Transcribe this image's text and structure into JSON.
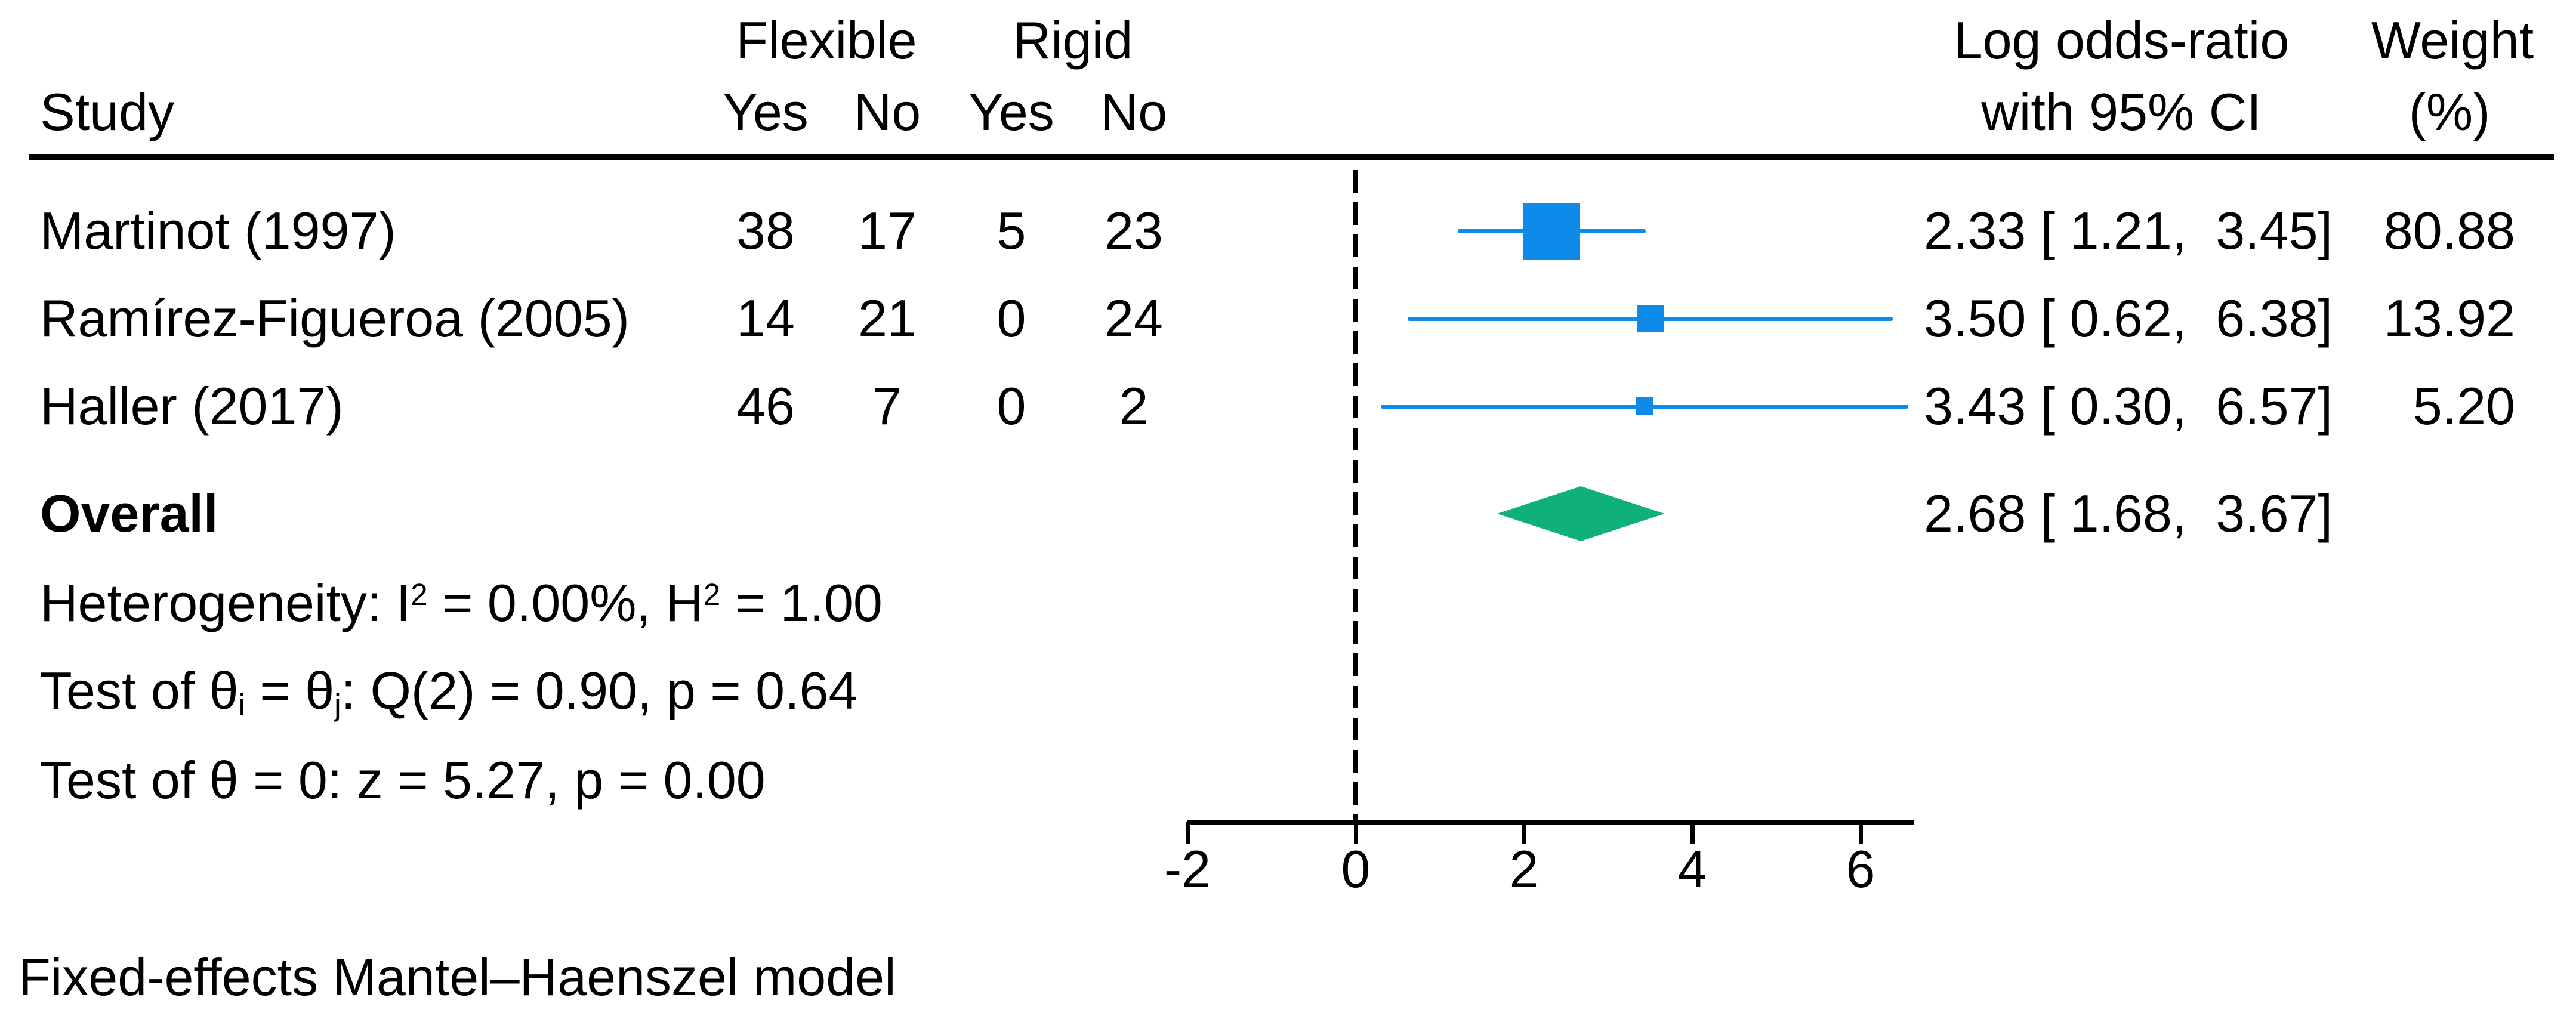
{
  "colors": {
    "marker_blue": "#0e8aea",
    "diamond_green": "#10b07c",
    "text_black": "#000000"
  },
  "header": {
    "study_label": "Study",
    "group1_label": "Flexible",
    "group2_label": "Rigid",
    "count_col_labels": [
      "Yes",
      "No",
      "Yes",
      "No"
    ],
    "effect_header_line1": "Log odds-ratio",
    "effect_header_line2": "with 95% CI",
    "weight_header_line1": "Weight",
    "weight_header_line2": "(%)"
  },
  "stats": {
    "overall_label": "Overall",
    "heterogeneity_p1": "Heterogeneity: I",
    "heterogeneity_s1": "2",
    "heterogeneity_p2": " = 0.00%, H",
    "heterogeneity_s2": "2",
    "heterogeneity_p3": " = 1.00",
    "test1_p1": "Test of θ",
    "test1_sub1": "i",
    "test1_p2": " = θ",
    "test1_sub2": "j",
    "test1_p3": ": Q(2) = 0.90, p = 0.64",
    "test2": "Test of θ = 0: z = 5.27, p = 0.00"
  },
  "footer": {
    "note": "Fixed-effects Mantel–Haenszel model"
  },
  "chart_data": {
    "type": "forest",
    "title": "",
    "effect_measure": "Log odds-ratio",
    "x_axis": {
      "ticks": [
        -2,
        0,
        2,
        4,
        6
      ],
      "tick_labels": [
        "-2",
        "0",
        "2",
        "4",
        "6"
      ],
      "reference_line": 0,
      "range_shown": [
        -2,
        6.6
      ]
    },
    "model_note": "Fixed-effects Mantel–Haenszel model",
    "heterogeneity": {
      "I2_pct": 0.0,
      "H2": 1.0,
      "Q_df": 2,
      "Q": 0.9,
      "p_Q": 0.64,
      "z": 5.27,
      "p_z": 0.0
    },
    "studies": [
      {
        "label": "Martinot (1997)",
        "flexible_yes": "38",
        "flexible_no": "17",
        "rigid_yes": "5",
        "rigid_no": "23",
        "estimate": 2.33,
        "ci_low": 1.21,
        "ci_high": 3.45,
        "ci_text": "2.33 [ 1.21,  3.45]",
        "weight_pct": "80.88",
        "marker_px": 95
      },
      {
        "label": "Ramírez-Figueroa (2005)",
        "flexible_yes": "14",
        "flexible_no": "21",
        "rigid_yes": "0",
        "rigid_no": "24",
        "estimate": 3.5,
        "ci_low": 0.62,
        "ci_high": 6.38,
        "ci_text": "3.50 [ 0.62,  6.38]",
        "weight_pct": "13.92",
        "marker_px": 46
      },
      {
        "label": "Haller (2017)",
        "flexible_yes": "46",
        "flexible_no": "7",
        "rigid_yes": "0",
        "rigid_no": "2",
        "estimate": 3.43,
        "ci_low": 0.3,
        "ci_high": 6.57,
        "ci_text": "3.43 [ 0.30,  6.57]",
        "weight_pct": "5.20",
        "marker_px": 30
      }
    ],
    "overall": {
      "label": "Overall",
      "estimate": 2.68,
      "ci_low": 1.68,
      "ci_high": 3.67,
      "ci_text": "2.68 [ 1.68,  3.67]"
    }
  }
}
